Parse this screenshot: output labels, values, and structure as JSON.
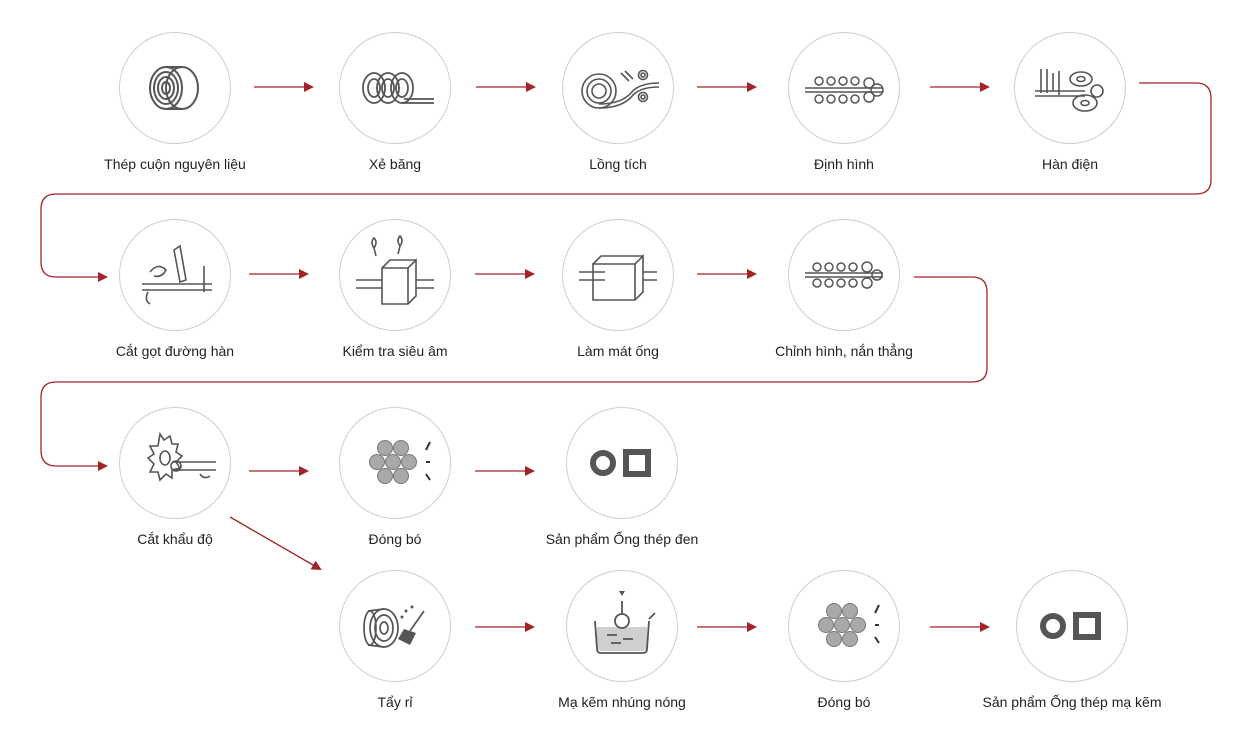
{
  "diagram": {
    "steps": [
      {
        "label": "Thép cuộn nguyên liệu",
        "icon": "steel-coil-icon"
      },
      {
        "label": "Xẻ băng",
        "icon": "strip-slitting-icon"
      },
      {
        "label": "Lồng tích",
        "icon": "strip-accumulator-icon"
      },
      {
        "label": "Định hình",
        "icon": "forming-rollers-icon"
      },
      {
        "label": "Hàn điện",
        "icon": "electric-welding-icon"
      },
      {
        "label": "Cắt gọt đường hàn",
        "icon": "weld-bead-trimming-icon"
      },
      {
        "label": "Kiểm tra siêu âm",
        "icon": "ultrasonic-test-icon"
      },
      {
        "label": "Làm mát ống",
        "icon": "pipe-cooling-icon"
      },
      {
        "label": "Chỉnh hình, nắn thẳng",
        "icon": "sizing-straightening-icon"
      },
      {
        "label": "Cắt khẩu độ",
        "icon": "cut-to-length-icon"
      },
      {
        "label": "Đóng bó",
        "icon": "bundling-icon"
      },
      {
        "label": "Sản phẩm Ống thép đen",
        "icon": "black-pipe-product-icon"
      },
      {
        "label": "Tẩy rỉ",
        "icon": "rust-removal-icon"
      },
      {
        "label": "Mạ kẽm nhúng nóng",
        "icon": "hot-dip-galvanizing-icon"
      },
      {
        "label": "Đóng bó",
        "icon": "bundling-icon"
      },
      {
        "label": "Sản phẩm Ống thép mạ kẽm",
        "icon": "galvanized-pipe-product-icon"
      }
    ],
    "colors": {
      "arrow": "#a3232a",
      "icon": "#555555",
      "circle_border": "#cfcfcf"
    }
  }
}
